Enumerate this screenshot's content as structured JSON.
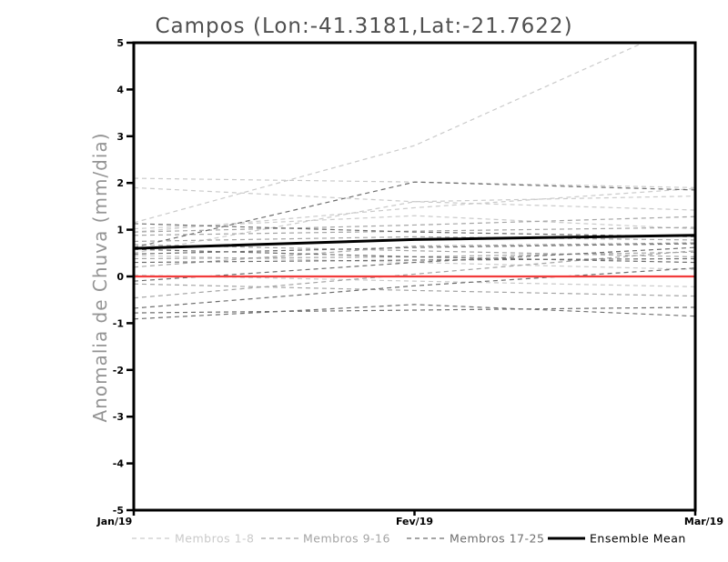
{
  "title": "Campos (Lon:-41.3181,Lat:-21.7622)",
  "chart_data": {
    "type": "line",
    "title": "Campos (Lon:-41.3181,Lat:-21.7622)",
    "xlabel": "",
    "ylabel": "Anomalia de Chuva (mm/dia)",
    "x_categories": [
      "Jan/19",
      "Fev/19",
      "Mar/19"
    ],
    "ylim": [
      -5,
      5
    ],
    "yticks": [
      5,
      4,
      3,
      2,
      1,
      0,
      -1,
      -2,
      -3,
      -4,
      -5
    ],
    "grid": false,
    "legend_position": "bottom",
    "zero_line": {
      "label": "zero-anomaly-line",
      "color": "#f23b3b",
      "values": [
        0,
        0,
        0
      ]
    },
    "mean": {
      "label": "Ensemble Mean",
      "color": "#000000",
      "values": [
        0.6,
        0.79,
        0.88
      ]
    },
    "groups": [
      {
        "label": "Membros 1-8",
        "color": "#cacaca",
        "style": "dashed",
        "members": [
          [
            2.1,
            2.02,
            1.9
          ],
          [
            1.9,
            1.6,
            1.42
          ],
          [
            1.15,
            2.8,
            5.5
          ],
          [
            0.5,
            1.6,
            1.72
          ],
          [
            1.02,
            1.3,
            1.02
          ],
          [
            0.03,
            -0.1,
            -0.22
          ],
          [
            0.45,
            0.3,
            0.15
          ],
          [
            0.95,
            1.47,
            1.88
          ]
        ]
      },
      {
        "label": "Membros 9-16",
        "color": "#a4a4a4",
        "style": "dashed",
        "members": [
          [
            0.95,
            1.1,
            1.28
          ],
          [
            0.88,
            0.97,
            1.05
          ],
          [
            0.75,
            0.85,
            0.78
          ],
          [
            0.68,
            0.55,
            0.42
          ],
          [
            0.38,
            0.42,
            0.52
          ],
          [
            0.2,
            0.65,
            0.72
          ],
          [
            -0.16,
            -0.3,
            -0.42
          ],
          [
            -0.46,
            0.05,
            0.55
          ]
        ]
      },
      {
        "label": "Membros 17-25",
        "color": "#6d6d6d",
        "style": "dashed",
        "members": [
          [
            1.13,
            0.95,
            0.85
          ],
          [
            0.62,
            2.02,
            1.85
          ],
          [
            0.58,
            0.42,
            0.3
          ],
          [
            0.48,
            0.62,
            0.7
          ],
          [
            0.3,
            0.35,
            0.38
          ],
          [
            -0.1,
            0.3,
            0.62
          ],
          [
            -0.68,
            -0.2,
            0.18
          ],
          [
            -0.78,
            -0.72,
            -0.66
          ],
          [
            -0.91,
            -0.6,
            -0.85
          ]
        ]
      }
    ],
    "legend": {
      "entries": [
        {
          "label": "Membros 1-8",
          "color": "#cacaca",
          "style": "dashed"
        },
        {
          "label": "Membros 9-16",
          "color": "#a4a4a4",
          "style": "dashed"
        },
        {
          "label": "Membros 17-25",
          "color": "#6d6d6d",
          "style": "dashed"
        },
        {
          "label": "Ensemble Mean",
          "color": "#000000",
          "style": "solid"
        }
      ]
    }
  },
  "colors": {
    "axis": "#000000",
    "title_text": "#4f4f4f",
    "ylabel_text": "#949494",
    "zero_line": "#f23b3b"
  }
}
